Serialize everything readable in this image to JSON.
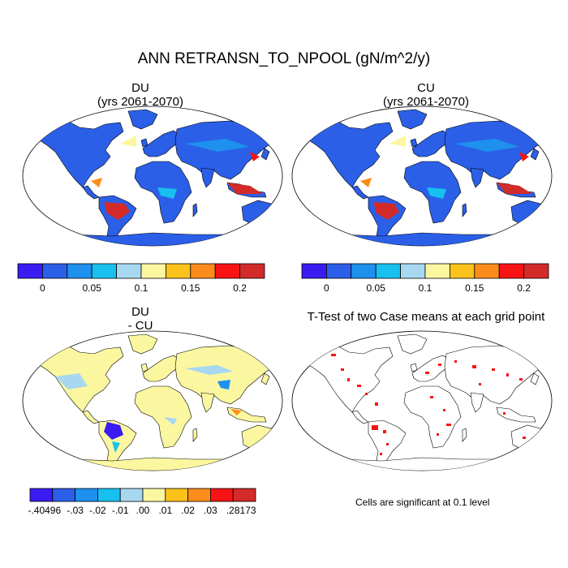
{
  "title": "ANN RETRANSN_TO_NPOOL (gN/m^2/y)",
  "panels": [
    {
      "id": "du",
      "title": "DU",
      "subtitle": "(yrs 2061-2070)"
    },
    {
      "id": "cu",
      "title": "CU",
      "subtitle": "(yrs 2061-2070)"
    },
    {
      "id": "diff",
      "title": "DU",
      "subtitle": "- CU"
    },
    {
      "id": "ttest",
      "title": "T-Test of two Case means at each grid point",
      "subtitle": ""
    }
  ],
  "colorbar_abs": {
    "colors": [
      "#3a1cf2",
      "#2b5fe8",
      "#1e90ee",
      "#18c0f0",
      "#a8d8f0",
      "#fbf7a0",
      "#fbc21c",
      "#fb8c1c",
      "#f81414",
      "#d32a2a"
    ],
    "labels": [
      "0",
      "0.05",
      "0.1",
      "0.15",
      "0.2"
    ]
  },
  "colorbar_diff": {
    "colors": [
      "#3a1cf2",
      "#2b5fe8",
      "#1e90ee",
      "#18c0f0",
      "#a8d8f0",
      "#fbf7a0",
      "#fbc21c",
      "#fb8c1c",
      "#f81414",
      "#d32a2a"
    ],
    "labels": [
      "-.40496",
      "-.03",
      "-.02",
      "-.01",
      ".00",
      ".01",
      ".02",
      ".03",
      ".28173"
    ]
  },
  "note": "Cells are significant at 0.1 level"
}
